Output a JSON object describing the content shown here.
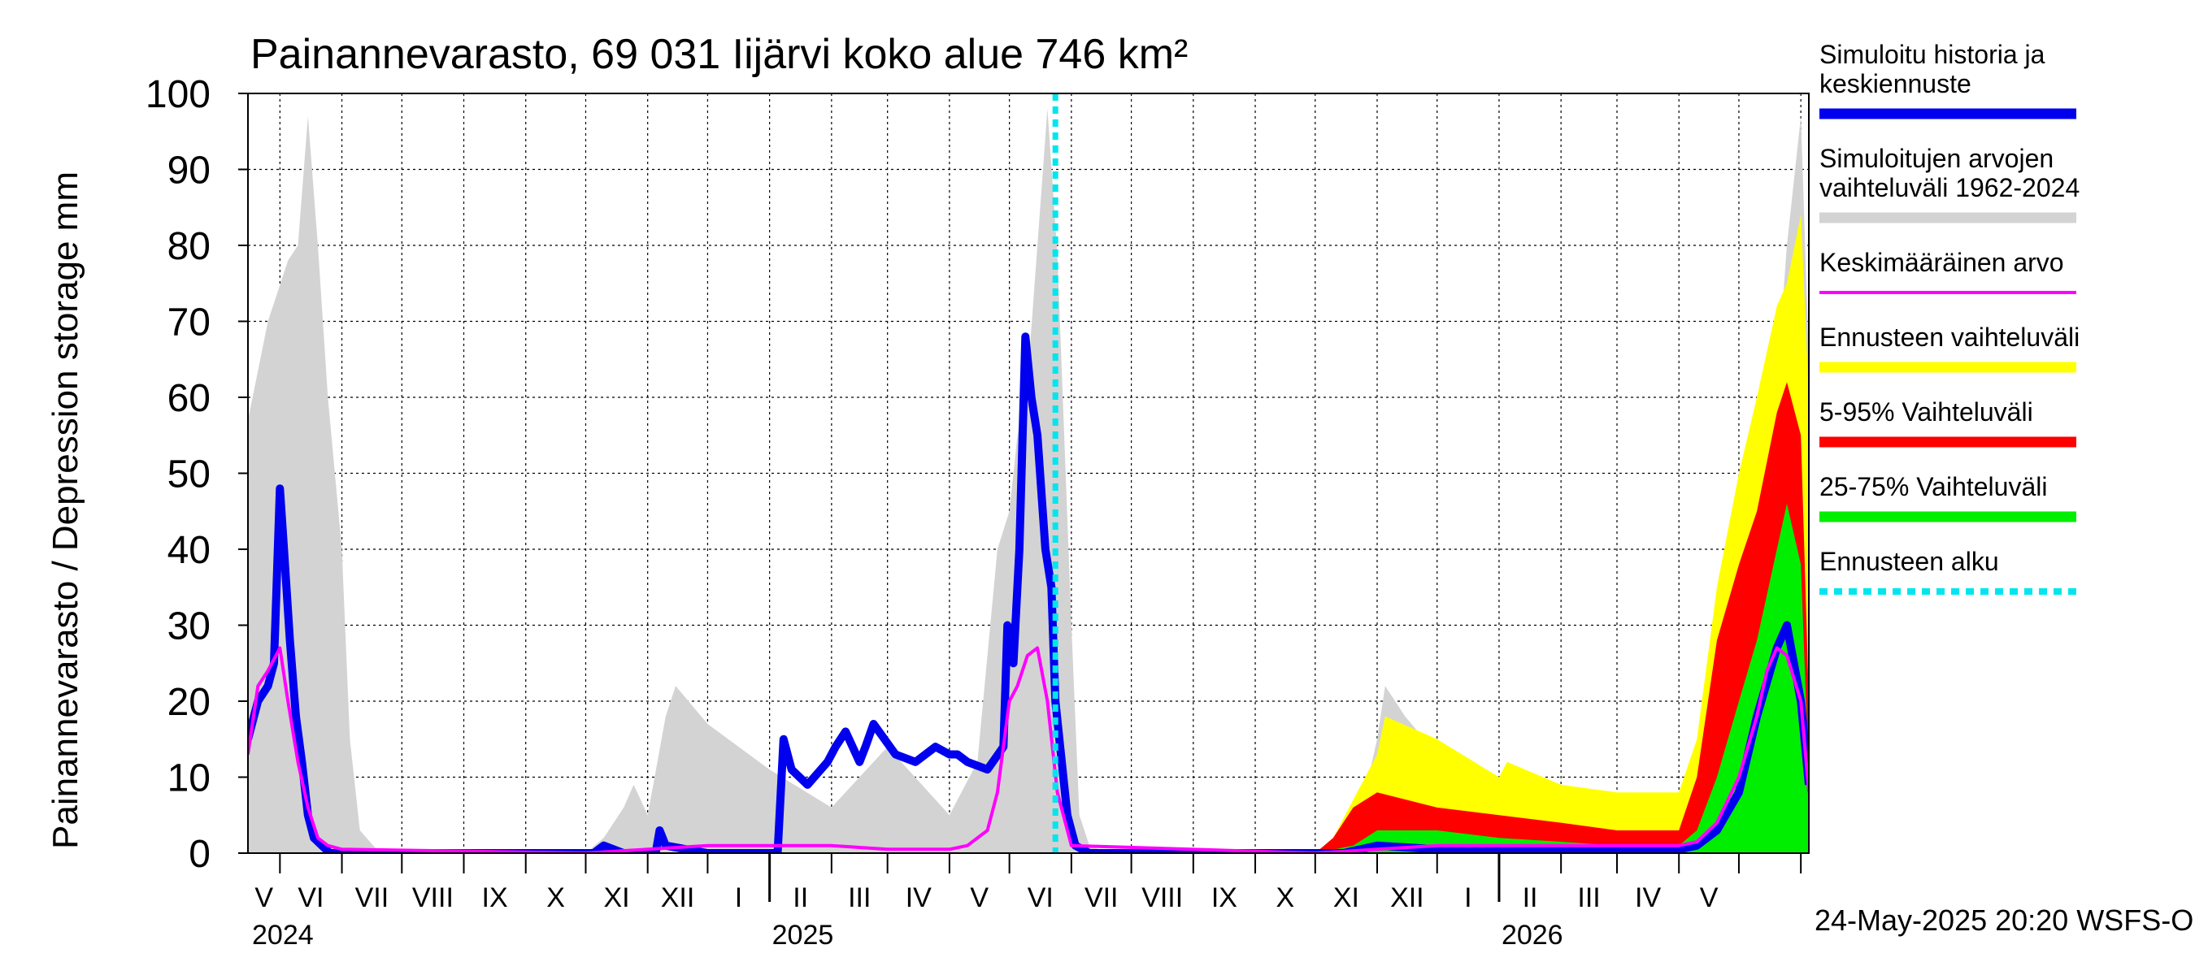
{
  "chart_data": {
    "type": "area",
    "title": "Painannevarasto, 69 031 Iijärvi koko alue 746 km²",
    "ylabel": "Painannevarasto / Depression storage    mm",
    "ylim": [
      0,
      100
    ],
    "yticks": [
      0,
      10,
      20,
      30,
      40,
      50,
      60,
      70,
      80,
      90,
      100
    ],
    "grid": true,
    "legend_position": "right",
    "month_labels": [
      "V",
      "VI",
      "VII",
      "VIII",
      "IX",
      "X",
      "XI",
      "XII",
      "I",
      "II",
      "III",
      "IV",
      "V",
      "VI",
      "VII",
      "VIII",
      "IX",
      "X",
      "XI",
      "XII",
      "I",
      "II",
      "III",
      "IV",
      "V"
    ],
    "year_labels": [
      "2024",
      "2025",
      "2026"
    ],
    "timestamp": "24-May-2025 20:20 WSFS-O",
    "x_range": [
      "2024-04-15",
      "2026-06-05"
    ],
    "forecast_start": "2025-05-24",
    "legend": [
      {
        "label": "Simuloitu historia ja keskiennuste",
        "color": "#0000ee",
        "style": "thick"
      },
      {
        "label": "Simuloitujen arvojen vaihteluväli 1962-2024",
        "color": "#d3d3d3",
        "style": "thick"
      },
      {
        "label": "Keskimääräinen arvo",
        "color": "#ff00ff",
        "style": "thin"
      },
      {
        "label": "Ennusteen vaihteluväli",
        "color": "#ffff00",
        "style": "thick"
      },
      {
        "label": "5-95% Vaihteluväli",
        "color": "#ff0000",
        "style": "thick"
      },
      {
        "label": "25-75% Vaihteluväli",
        "color": "#00ee00",
        "style": "thick"
      },
      {
        "label": "Ennusteen alku",
        "color": "#00e5ee",
        "style": "dotted"
      }
    ],
    "series": [
      {
        "name": "Simuloitujen arvojen vaihteluväli 1962-2024",
        "kind": "band",
        "color": "#d3d3d3",
        "x": [
          "2024-04-15",
          "2024-04-25",
          "2024-05-05",
          "2024-05-10",
          "2024-05-15",
          "2024-05-20",
          "2024-05-25",
          "2024-06-01",
          "2024-06-05",
          "2024-06-10",
          "2024-06-20",
          "2024-10-01",
          "2024-10-10",
          "2024-10-20",
          "2024-10-25",
          "2024-11-01",
          "2024-11-10",
          "2024-11-15",
          "2024-12-01",
          "2025-01-01",
          "2025-02-01",
          "2025-03-01",
          "2025-04-01",
          "2025-04-15",
          "2025-04-25",
          "2025-05-01",
          "2025-05-05",
          "2025-05-10",
          "2025-05-15",
          "2025-05-20",
          "2025-05-25",
          "2025-06-01",
          "2025-06-05",
          "2025-06-10",
          "2025-06-20",
          "2025-10-01",
          "2025-10-15",
          "2025-10-25",
          "2025-11-01",
          "2025-11-05",
          "2025-11-15",
          "2025-12-01",
          "2026-01-01",
          "2026-01-05",
          "2026-02-01",
          "2026-03-01",
          "2026-04-01",
          "2026-04-15",
          "2026-04-25",
          "2026-05-05",
          "2026-05-15",
          "2026-05-20",
          "2026-05-25",
          "2026-06-01",
          "2026-06-05"
        ],
        "upper": [
          57,
          70,
          78,
          80,
          97,
          80,
          60,
          40,
          15,
          3,
          0,
          0,
          2,
          6,
          9,
          5,
          18,
          22,
          17,
          11,
          6,
          14,
          5,
          12,
          40,
          45,
          55,
          62,
          80,
          98,
          79,
          30,
          5,
          1,
          0,
          0,
          2,
          7,
          15,
          22,
          18,
          13,
          7,
          11,
          9,
          7,
          8,
          14,
          25,
          38,
          55,
          62,
          80,
          97,
          65
        ],
        "lower": [
          0,
          0,
          0,
          0,
          0,
          0,
          0,
          0,
          0,
          0,
          0,
          0,
          0,
          0,
          0,
          0,
          0,
          0,
          0,
          0,
          0,
          0,
          0,
          0,
          0,
          0,
          0,
          0,
          0,
          0,
          0,
          0,
          0,
          0,
          0,
          0,
          0,
          0,
          0,
          0,
          0,
          0,
          0,
          0,
          0,
          0,
          0,
          0,
          0,
          0,
          0,
          0,
          0,
          0,
          0
        ]
      },
      {
        "name": "Ennusteen vaihteluväli",
        "kind": "band",
        "color": "#ffff00",
        "x": [
          "2025-10-01",
          "2025-10-10",
          "2025-10-20",
          "2025-11-01",
          "2025-11-05",
          "2025-12-01",
          "2026-01-01",
          "2026-01-05",
          "2026-02-01",
          "2026-03-01",
          "2026-04-01",
          "2026-04-10",
          "2026-04-20",
          "2026-05-01",
          "2026-05-10",
          "2026-05-20",
          "2026-05-25",
          "2026-06-01",
          "2026-06-05"
        ],
        "upper": [
          0,
          2,
          7,
          13,
          18,
          15,
          10,
          12,
          9,
          8,
          8,
          15,
          35,
          50,
          60,
          72,
          75,
          84,
          60
        ],
        "lower": [
          0,
          0,
          0,
          0,
          0,
          0,
          0,
          0,
          0,
          0,
          0,
          0,
          0,
          0,
          0,
          0,
          0,
          0,
          0
        ]
      },
      {
        "name": "5-95% Vaihteluväli",
        "kind": "band",
        "color": "#ff0000",
        "x": [
          "2025-10-01",
          "2025-10-10",
          "2025-10-20",
          "2025-11-01",
          "2025-12-01",
          "2026-01-01",
          "2026-02-01",
          "2026-03-01",
          "2026-04-01",
          "2026-04-10",
          "2026-04-20",
          "2026-05-01",
          "2026-05-10",
          "2026-05-20",
          "2026-05-25",
          "2026-06-01",
          "2026-06-05"
        ],
        "upper": [
          0,
          2,
          6,
          8,
          6,
          5,
          4,
          3,
          3,
          10,
          28,
          38,
          45,
          58,
          62,
          55,
          20
        ],
        "lower": [
          0,
          0,
          0,
          0,
          0,
          0,
          0,
          0,
          0,
          0,
          0,
          0,
          0,
          0,
          0,
          0,
          0
        ]
      },
      {
        "name": "25-75% Vaihteluväli",
        "kind": "band",
        "color": "#00ee00",
        "x": [
          "2025-10-01",
          "2025-10-20",
          "2025-11-01",
          "2025-12-01",
          "2026-01-01",
          "2026-02-01",
          "2026-03-01",
          "2026-04-01",
          "2026-04-10",
          "2026-04-20",
          "2026-05-01",
          "2026-05-10",
          "2026-05-20",
          "2026-05-25",
          "2026-06-01",
          "2026-06-05"
        ],
        "upper": [
          0,
          1,
          3,
          3,
          2,
          1.5,
          1,
          1,
          3,
          10,
          20,
          28,
          40,
          46,
          38,
          10
        ],
        "lower": [
          0,
          0,
          0,
          0,
          0,
          0,
          0,
          0,
          0,
          0,
          0,
          0,
          0,
          0,
          0,
          0
        ]
      },
      {
        "name": "Simuloitu historia ja keskiennuste",
        "kind": "line",
        "color": "#0000ee",
        "x": [
          "2024-04-15",
          "2024-04-20",
          "2024-04-25",
          "2024-04-28",
          "2024-05-01",
          "2024-05-03",
          "2024-05-06",
          "2024-05-09",
          "2024-05-12",
          "2024-05-15",
          "2024-05-18",
          "2024-05-22",
          "2024-05-26",
          "2024-06-01",
          "2024-06-10",
          "2024-10-01",
          "2024-10-05",
          "2024-10-10",
          "2024-10-20",
          "2024-10-25",
          "2024-11-01",
          "2024-11-05",
          "2024-11-07",
          "2024-11-10",
          "2024-12-01",
          "2025-01-05",
          "2025-01-08",
          "2025-01-12",
          "2025-01-20",
          "2025-01-30",
          "2025-02-03",
          "2025-02-08",
          "2025-02-15",
          "2025-02-18",
          "2025-02-22",
          "2025-03-05",
          "2025-03-15",
          "2025-03-25",
          "2025-04-01",
          "2025-04-05",
          "2025-04-10",
          "2025-04-20",
          "2025-04-28",
          "2025-04-30",
          "2025-05-03",
          "2025-05-06",
          "2025-05-09",
          "2025-05-12",
          "2025-05-15",
          "2025-05-19",
          "2025-05-22",
          "2025-05-24",
          "2025-05-30",
          "2025-06-03",
          "2025-06-10",
          "2025-10-01",
          "2025-10-15",
          "2025-11-01",
          "2025-12-01",
          "2026-03-01",
          "2026-04-01",
          "2026-04-10",
          "2026-04-20",
          "2026-05-01",
          "2026-05-10",
          "2026-05-20",
          "2026-05-25",
          "2026-06-01",
          "2026-06-05"
        ],
        "values": [
          15,
          20,
          22,
          25,
          48,
          40,
          28,
          18,
          12,
          5,
          2,
          1,
          0,
          0,
          0,
          0,
          0,
          1,
          0,
          0,
          0,
          0,
          3,
          1,
          0,
          0,
          15,
          11,
          9,
          12,
          14,
          16,
          12,
          14,
          17,
          13,
          12,
          14,
          13,
          13,
          12,
          11,
          14,
          30,
          25,
          40,
          68,
          60,
          55,
          40,
          35,
          20,
          5,
          1,
          0,
          0,
          0,
          1,
          0.5,
          0.5,
          0.5,
          1,
          3,
          8,
          18,
          27,
          30,
          20,
          9
        ]
      },
      {
        "name": "Keskimääräinen arvo",
        "kind": "line",
        "color": "#ff00ff",
        "x": [
          "2024-04-15",
          "2024-04-20",
          "2024-04-25",
          "2024-05-01",
          "2024-05-05",
          "2024-05-10",
          "2024-05-15",
          "2024-05-20",
          "2024-05-25",
          "2024-06-01",
          "2024-10-01",
          "2024-11-01",
          "2024-12-01",
          "2025-01-01",
          "2025-02-01",
          "2025-03-01",
          "2025-04-01",
          "2025-04-10",
          "2025-04-20",
          "2025-04-25",
          "2025-05-01",
          "2025-05-05",
          "2025-05-10",
          "2025-05-15",
          "2025-05-20",
          "2025-05-25",
          "2025-06-01",
          "2025-10-01",
          "2025-11-01",
          "2025-12-01",
          "2026-04-01",
          "2026-04-10",
          "2026-04-20",
          "2026-05-01",
          "2026-05-10",
          "2026-05-15",
          "2026-05-20",
          "2026-05-25",
          "2026-06-01",
          "2026-06-05"
        ],
        "values": [
          13,
          22,
          24,
          27,
          20,
          12,
          6,
          2,
          1,
          0.5,
          0,
          0.5,
          1,
          1,
          1,
          0.5,
          0.5,
          1,
          3,
          8,
          20,
          22,
          26,
          27,
          20,
          8,
          1,
          0,
          0.5,
          1,
          1,
          1.5,
          4,
          10,
          18,
          24,
          27,
          26,
          20,
          8
        ]
      }
    ]
  }
}
